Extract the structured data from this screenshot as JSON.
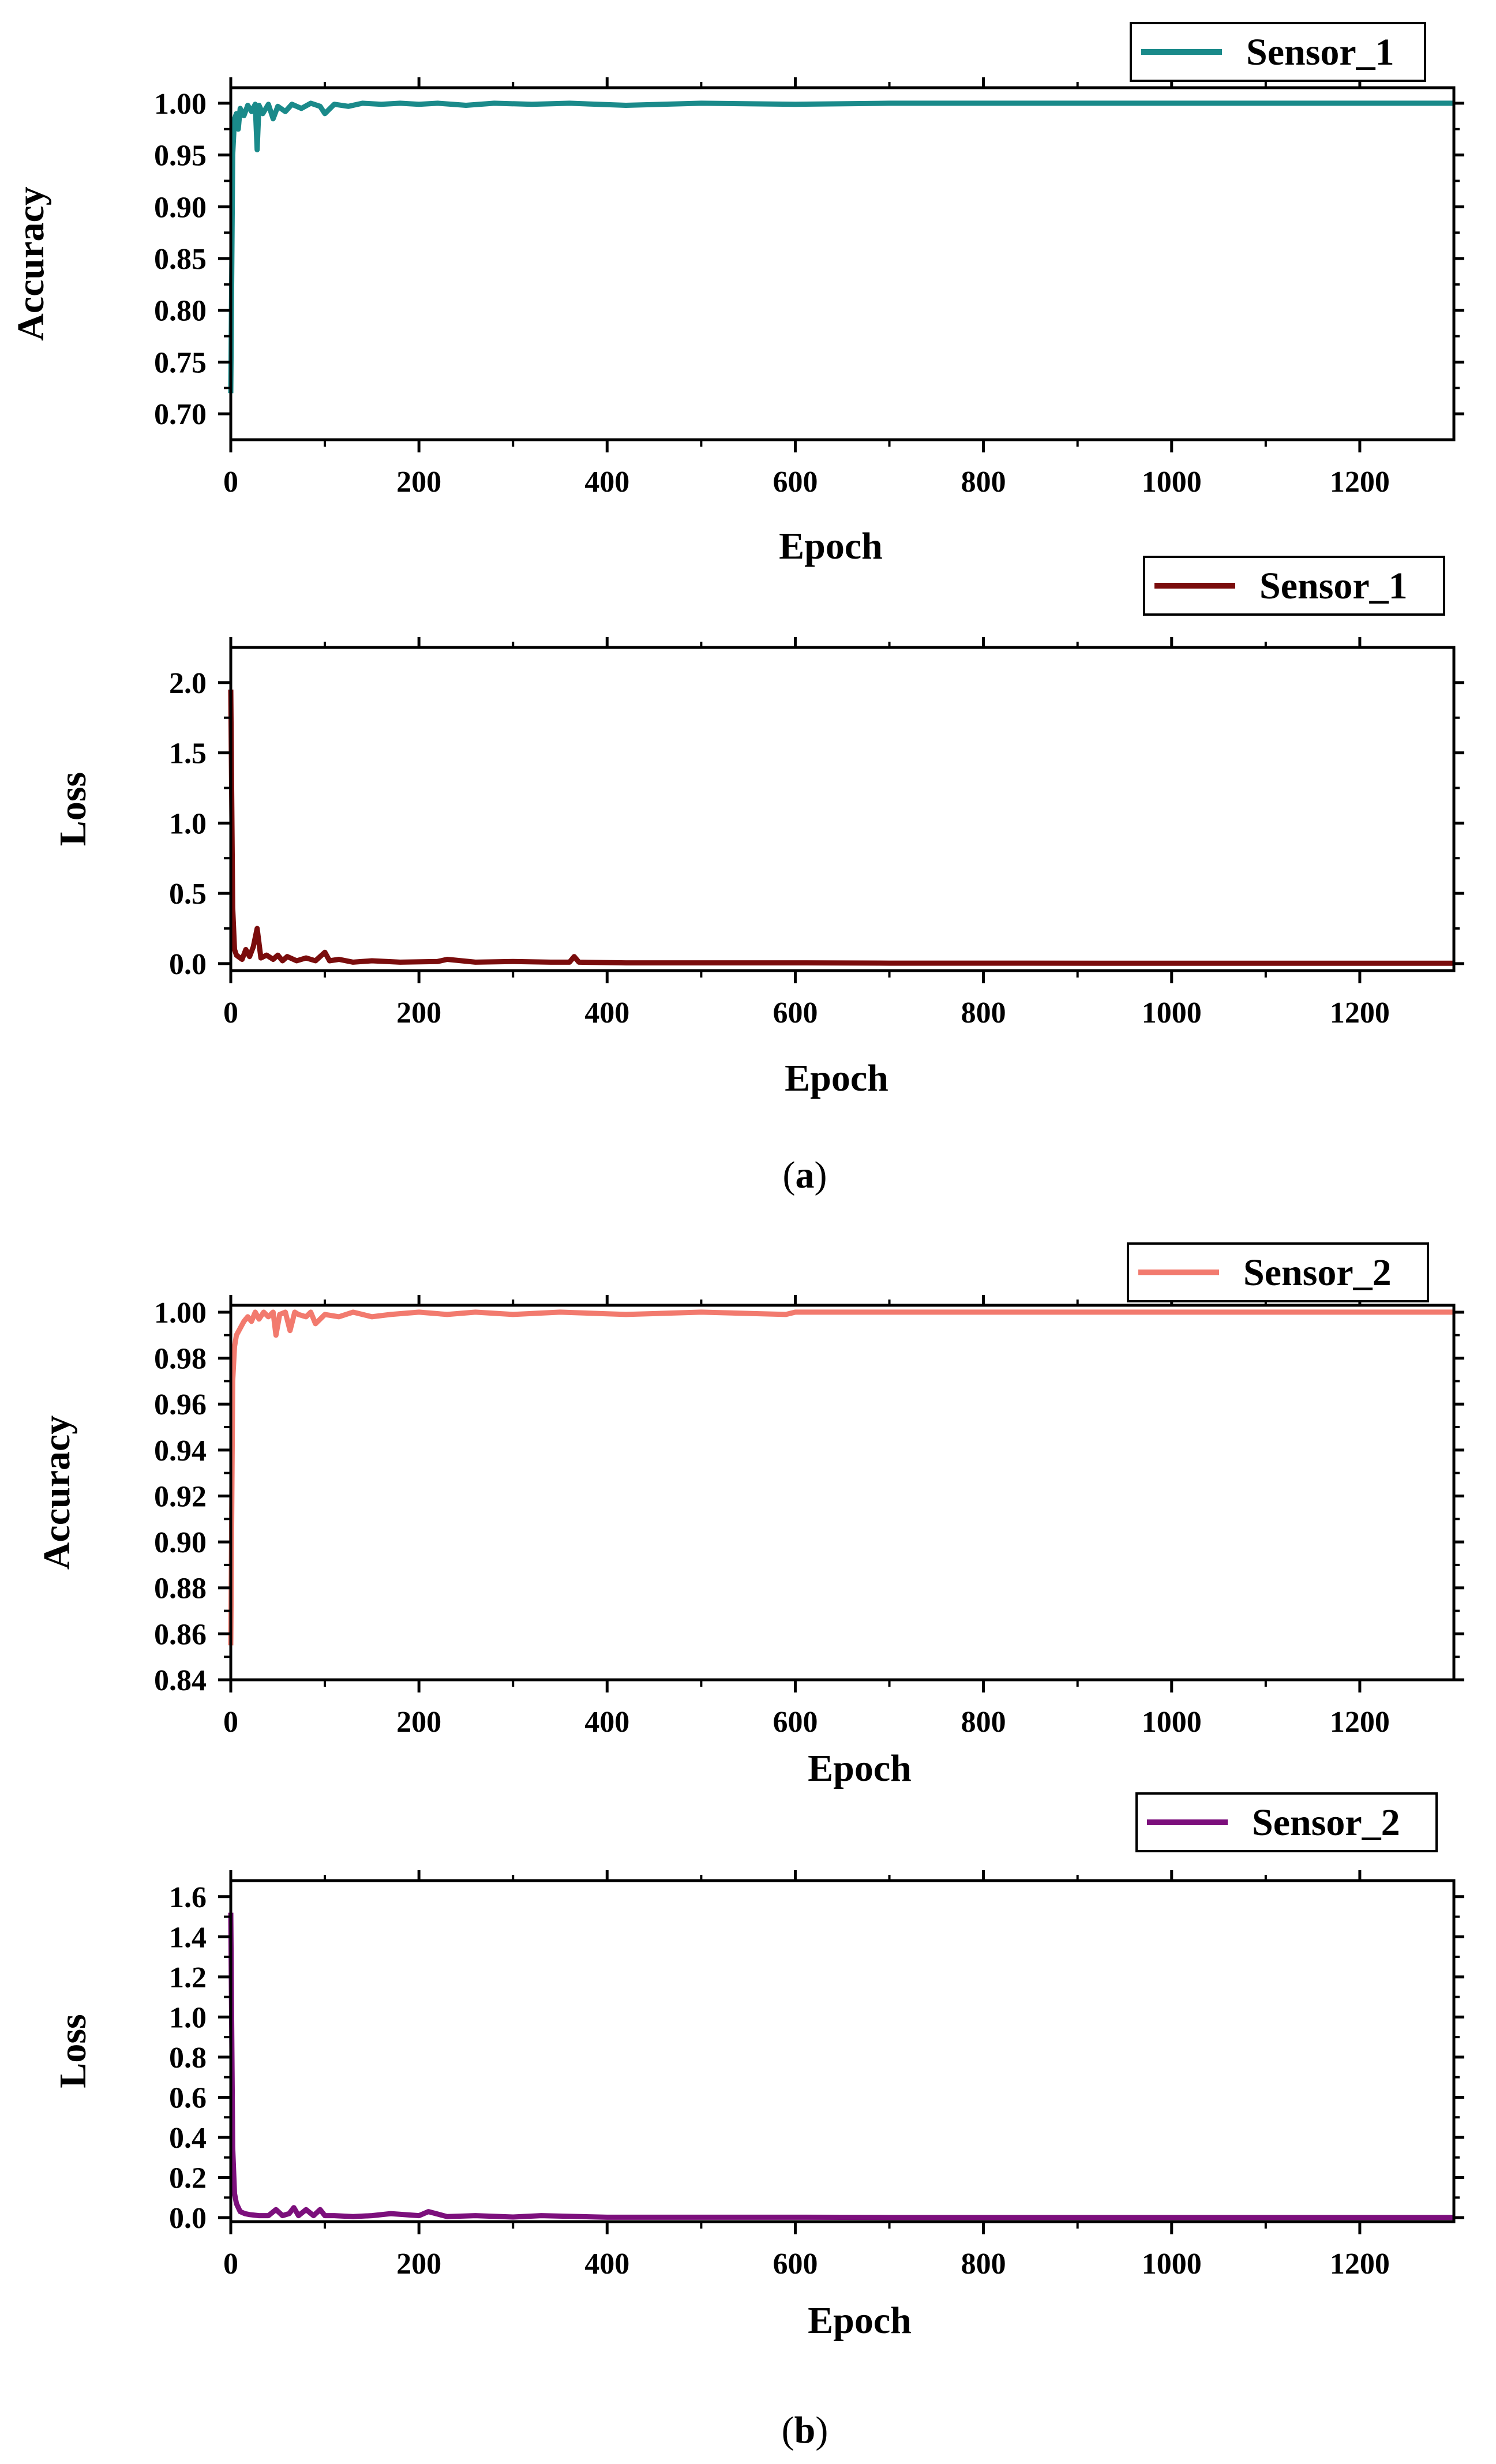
{
  "figure": {
    "caption_a": "a",
    "caption_b": "b"
  },
  "chart_data": [
    {
      "panel": "a-top",
      "type": "line",
      "xlabel": "Epoch",
      "ylabel": "Accuracy",
      "xlim": [
        0,
        1300
      ],
      "ylim": [
        0.675,
        1.015
      ],
      "xticks": [
        0,
        200,
        400,
        600,
        800,
        1000,
        1200
      ],
      "xtick_labels": [
        "0",
        "200",
        "400",
        "600",
        "800",
        "1000",
        "1200"
      ],
      "yticks": [
        0.7,
        0.75,
        0.8,
        0.85,
        0.9,
        0.95,
        1.0
      ],
      "ytick_labels": [
        "0.70",
        "0.75",
        "0.80",
        "0.85",
        "0.90",
        "0.95",
        "1.00"
      ],
      "grid": false,
      "legend_position": "top-right, outside",
      "series": [
        {
          "name": "Sensor_1",
          "color": "#1a8a8a",
          "x": [
            0,
            2,
            4,
            6,
            8,
            10,
            14,
            18,
            22,
            26,
            28,
            30,
            34,
            40,
            45,
            50,
            58,
            65,
            75,
            85,
            95,
            100,
            110,
            125,
            140,
            160,
            180,
            200,
            220,
            250,
            280,
            320,
            360,
            420,
            500,
            600,
            700,
            800,
            1000,
            1200,
            1300
          ],
          "y": [
            0.72,
            0.95,
            0.985,
            0.99,
            0.975,
            0.995,
            0.988,
            0.998,
            0.992,
            0.999,
            0.955,
            0.998,
            0.99,
            0.999,
            0.985,
            0.997,
            0.992,
            0.999,
            0.995,
            1.0,
            0.997,
            0.99,
            0.999,
            0.997,
            1.0,
            0.999,
            1.0,
            0.999,
            1.0,
            0.998,
            1.0,
            0.999,
            1.0,
            0.998,
            1.0,
            0.999,
            1.0,
            1.0,
            1.0,
            1.0,
            1.0
          ]
        }
      ]
    },
    {
      "panel": "a-bottom",
      "type": "line",
      "xlabel": "Epoch",
      "ylabel": "Loss",
      "xlim": [
        0,
        1300
      ],
      "ylim": [
        -0.05,
        2.25
      ],
      "xticks": [
        0,
        200,
        400,
        600,
        800,
        1000,
        1200
      ],
      "xtick_labels": [
        "0",
        "200",
        "400",
        "600",
        "800",
        "1000",
        "1200"
      ],
      "yticks": [
        0.0,
        0.5,
        1.0,
        1.5,
        2.0
      ],
      "ytick_labels": [
        "0.0",
        "0.5",
        "1.0",
        "1.5",
        "2.0"
      ],
      "grid": false,
      "legend_position": "top-right, outside",
      "series": [
        {
          "name": "Sensor_1",
          "color": "#7a0c0c",
          "x": [
            0,
            2,
            4,
            6,
            8,
            12,
            16,
            20,
            24,
            28,
            32,
            38,
            45,
            50,
            55,
            60,
            70,
            80,
            90,
            100,
            105,
            115,
            130,
            150,
            180,
            220,
            230,
            260,
            300,
            340,
            360,
            365,
            370,
            420,
            500,
            600,
            700,
            800,
            1000,
            1200,
            1300
          ],
          "y": [
            1.95,
            0.4,
            0.1,
            0.06,
            0.05,
            0.03,
            0.1,
            0.05,
            0.12,
            0.25,
            0.04,
            0.06,
            0.03,
            0.06,
            0.02,
            0.05,
            0.02,
            0.04,
            0.02,
            0.08,
            0.02,
            0.03,
            0.01,
            0.02,
            0.01,
            0.015,
            0.03,
            0.01,
            0.015,
            0.01,
            0.01,
            0.05,
            0.01,
            0.005,
            0.005,
            0.005,
            0.003,
            0.003,
            0.002,
            0.002,
            0.002
          ]
        }
      ]
    },
    {
      "panel": "b-top",
      "type": "line",
      "xlabel": "Epoch",
      "ylabel": "Accuracy",
      "xlim": [
        0,
        1300
      ],
      "ylim": [
        0.84,
        1.003
      ],
      "xticks": [
        0,
        200,
        400,
        600,
        800,
        1000,
        1200
      ],
      "xtick_labels": [
        "0",
        "200",
        "400",
        "600",
        "800",
        "1000",
        "1200"
      ],
      "yticks": [
        0.84,
        0.86,
        0.88,
        0.9,
        0.92,
        0.94,
        0.96,
        0.98,
        1.0
      ],
      "ytick_labels": [
        "0.84",
        "0.86",
        "0.88",
        "0.90",
        "0.92",
        "0.94",
        "0.96",
        "0.98",
        "1.00"
      ],
      "grid": false,
      "legend_position": "top-right, outside",
      "series": [
        {
          "name": "Sensor_2",
          "color": "#f27a6e",
          "x": [
            0,
            2,
            4,
            6,
            10,
            14,
            18,
            22,
            26,
            30,
            35,
            40,
            45,
            48,
            52,
            58,
            63,
            68,
            72,
            80,
            85,
            90,
            100,
            115,
            130,
            150,
            170,
            200,
            230,
            260,
            300,
            350,
            420,
            500,
            590,
            600,
            700,
            800,
            1000,
            1200,
            1300
          ],
          "y": [
            0.855,
            0.97,
            0.985,
            0.99,
            0.993,
            0.996,
            0.998,
            0.996,
            1.0,
            0.997,
            1.0,
            0.998,
            1.0,
            0.99,
            0.999,
            1.0,
            0.992,
            1.0,
            0.999,
            0.998,
            1.0,
            0.995,
            0.999,
            0.998,
            1.0,
            0.998,
            0.999,
            1.0,
            0.999,
            1.0,
            0.999,
            1.0,
            0.999,
            1.0,
            0.999,
            1.0,
            1.0,
            1.0,
            1.0,
            1.0,
            1.0
          ]
        }
      ]
    },
    {
      "panel": "b-bottom",
      "type": "line",
      "xlabel": "Epoch",
      "ylabel": "Loss",
      "xlim": [
        0,
        1300
      ],
      "ylim": [
        -0.02,
        1.68
      ],
      "xticks": [
        0,
        200,
        400,
        600,
        800,
        1000,
        1200
      ],
      "xtick_labels": [
        "0",
        "200",
        "400",
        "600",
        "800",
        "1000",
        "1200"
      ],
      "yticks": [
        0.0,
        0.2,
        0.4,
        0.6,
        0.8,
        1.0,
        1.2,
        1.4,
        1.6
      ],
      "ytick_labels": [
        "0.0",
        "0.2",
        "0.4",
        "0.6",
        "0.8",
        "1.0",
        "1.2",
        "1.4",
        "1.6"
      ],
      "grid": false,
      "legend_position": "top-right, outside",
      "series": [
        {
          "name": "Sensor_2",
          "color": "#7c0f7c",
          "x": [
            0,
            2,
            4,
            6,
            10,
            15,
            20,
            30,
            40,
            48,
            55,
            62,
            67,
            72,
            80,
            88,
            95,
            100,
            110,
            130,
            150,
            170,
            200,
            210,
            230,
            260,
            300,
            330,
            400,
            500,
            600,
            700,
            800,
            1000,
            1200,
            1300
          ],
          "y": [
            1.52,
            0.35,
            0.12,
            0.07,
            0.03,
            0.02,
            0.015,
            0.01,
            0.01,
            0.04,
            0.01,
            0.02,
            0.05,
            0.01,
            0.04,
            0.01,
            0.04,
            0.01,
            0.01,
            0.005,
            0.01,
            0.02,
            0.01,
            0.03,
            0.005,
            0.01,
            0.003,
            0.01,
            0.002,
            0.002,
            0.002,
            0.001,
            0.001,
            0.001,
            0.001,
            0.001
          ]
        }
      ]
    }
  ]
}
